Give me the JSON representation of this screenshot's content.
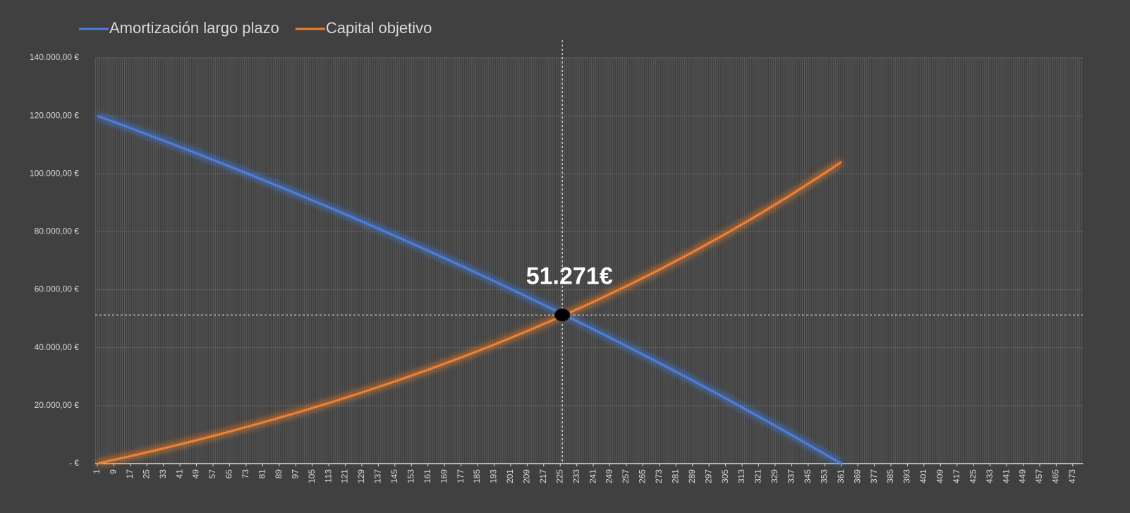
{
  "chart_data": {
    "type": "line",
    "x": [
      1,
      17,
      33,
      49,
      65,
      81,
      97,
      113,
      129,
      145,
      161,
      177,
      193,
      209,
      225,
      241,
      257,
      273,
      289,
      305,
      321,
      337,
      353,
      361
    ],
    "series": [
      {
        "name": "Amortización largo plazo",
        "color": "#4a7fe0",
        "values": [
          120000,
          115775,
          111456,
          107049,
          102552,
          97957,
          93266,
          88477,
          83589,
          78596,
          73499,
          68295,
          62983,
          57557,
          52019,
          46364,
          40588,
          34694,
          28675,
          22529,
          16254,
          9847,
          3306,
          0
        ]
      },
      {
        "name": "Capital objetivo",
        "color": "#f08030",
        "values": [
          0,
          2554,
          5240,
          8065,
          11035,
          14158,
          17443,
          20897,
          24530,
          28350,
          32367,
          36591,
          41034,
          45705,
          50618,
          55784,
          61217,
          66930,
          72938,
          79255,
          85907,
          92895,
          100242,
          104060
        ]
      }
    ],
    "xlim": [
      0,
      478
    ],
    "xticks": [
      1,
      9,
      17,
      25,
      33,
      41,
      49,
      57,
      65,
      73,
      81,
      89,
      97,
      105,
      113,
      121,
      129,
      137,
      145,
      153,
      161,
      169,
      177,
      185,
      193,
      201,
      209,
      217,
      225,
      233,
      241,
      249,
      257,
      265,
      273,
      281,
      289,
      297,
      305,
      313,
      321,
      329,
      337,
      345,
      353,
      361,
      369,
      377,
      385,
      393,
      401,
      409,
      417,
      425,
      433,
      441,
      449,
      457,
      465,
      473
    ],
    "ylim": [
      0,
      140000
    ],
    "yticks": [
      {
        "value": 0,
        "label": "-   €"
      },
      {
        "value": 20000,
        "label": "20.000,00 €"
      },
      {
        "value": 40000,
        "label": "40.000,00 €"
      },
      {
        "value": 60000,
        "label": "60.000,00 €"
      },
      {
        "value": 80000,
        "label": "80.000,00 €"
      },
      {
        "value": 100000,
        "label": "100.000,00 €"
      },
      {
        "value": 120000,
        "label": "120.000,00 €"
      },
      {
        "value": 140000,
        "label": "140.000,00 €"
      }
    ],
    "grid": true,
    "annotation": {
      "x": 226,
      "y": 51271,
      "label": "51.271€"
    }
  }
}
